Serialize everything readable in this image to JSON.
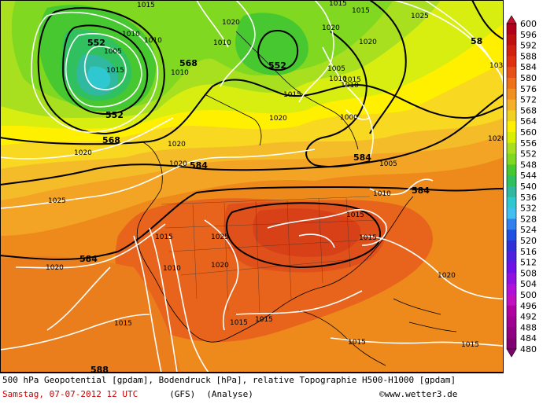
{
  "legend": {
    "levels": [
      600,
      596,
      592,
      588,
      584,
      580,
      576,
      572,
      568,
      564,
      560,
      556,
      552,
      548,
      544,
      540,
      536,
      532,
      528,
      524,
      520,
      516,
      512,
      508,
      504,
      500,
      496,
      492,
      488,
      484,
      480
    ],
    "colors": [
      "#c8102e",
      "#b2001a",
      "#c01010",
      "#d22010",
      "#e03010",
      "#e8501a",
      "#ee7018",
      "#f09020",
      "#f4b028",
      "#f0d020",
      "#fff000",
      "#d8f000",
      "#a8e020",
      "#80d820",
      "#48c830",
      "#30c060",
      "#30b8a0",
      "#30c8d0",
      "#40c0f0",
      "#3080f0",
      "#2050e0",
      "#3030d8",
      "#5020e0",
      "#7010e8",
      "#9010e0",
      "#b010d8",
      "#c010c0",
      "#b000a0",
      "#a00090",
      "#900080",
      "#800070"
    ]
  },
  "isohypse_labels": [
    "552",
    "552",
    "552",
    "568",
    "568",
    "568",
    "584",
    "584",
    "588",
    "584",
    "584",
    "58"
  ],
  "isobar_labels": [
    "1015",
    "1010",
    "1010",
    "1005",
    "1015",
    "1020",
    "1010",
    "1010",
    "1020",
    "1020",
    "1025",
    "1020",
    "1015",
    "1005",
    "1010",
    "1020",
    "1000",
    "1020",
    "1020",
    "1015",
    "1025",
    "1015",
    "1015",
    "1010",
    "1005",
    "1010",
    "1015",
    "1020",
    "1020",
    "1010",
    "1015",
    "1015",
    "1015",
    "1020",
    "1015",
    "1015",
    "1015",
    "1025",
    "103"
  ],
  "footer": {
    "line1": "500 hPa Geopotential [gpdam], Bodendruck [hPa], relative Topographie H500-H1000 [gpdam]",
    "date": "Samstag, 07-07-2012  12 UTC",
    "model": "(GFS)",
    "analysis": "(Analyse)",
    "credit": "©www.wetter3.de"
  }
}
